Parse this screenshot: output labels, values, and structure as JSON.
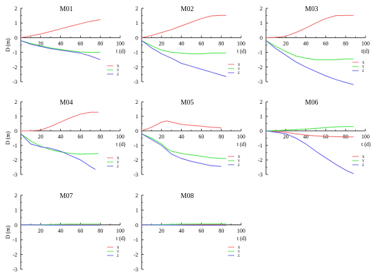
{
  "figure": {
    "xlabel": "t (d)",
    "ylabel": "D (m)",
    "xticks": [
      20,
      40,
      60,
      80,
      100
    ],
    "yticks": [
      2,
      1,
      0,
      -1,
      -2,
      -3
    ],
    "series_colors": {
      "X": "#f06262",
      "Y": "#3ee33e",
      "Z": "#5a5ae8"
    },
    "legend_labels": [
      "X",
      "Y",
      "Z"
    ]
  },
  "chart_data": [
    {
      "type": "line",
      "title": "M01",
      "xlabel": "t (d)",
      "ylabel": "D (m)",
      "xlim": [
        0,
        100
      ],
      "ylim": [
        -3,
        2
      ],
      "legend": "lower-right-below",
      "series": [
        {
          "name": "X",
          "x": [
            0,
            10,
            20,
            30,
            40,
            50,
            60,
            70,
            80
          ],
          "y": [
            0,
            0.12,
            0.25,
            0.42,
            0.6,
            0.78,
            0.95,
            1.12,
            1.22
          ]
        },
        {
          "name": "Y",
          "x": [
            0,
            10,
            20,
            30,
            40,
            50,
            60,
            70,
            80
          ],
          "y": [
            -0.2,
            -0.4,
            -0.55,
            -0.7,
            -0.8,
            -0.9,
            -0.97,
            -1.0,
            -1.0
          ]
        },
        {
          "name": "Z",
          "x": [
            0,
            10,
            20,
            30,
            40,
            50,
            60,
            70,
            80
          ],
          "y": [
            -0.2,
            -0.45,
            -0.6,
            -0.75,
            -0.85,
            -0.95,
            -1.05,
            -1.25,
            -1.5
          ]
        }
      ]
    },
    {
      "type": "line",
      "title": "M02",
      "xlabel": "t (d)",
      "ylabel": "",
      "xlim": [
        0,
        100
      ],
      "ylim": [
        -3,
        2
      ],
      "legend": "lower-right",
      "series": [
        {
          "name": "X",
          "x": [
            0,
            10,
            20,
            30,
            40,
            50,
            60,
            70,
            80,
            85
          ],
          "y": [
            0,
            0.15,
            0.35,
            0.55,
            0.8,
            1.05,
            1.3,
            1.48,
            1.52,
            1.52
          ]
        },
        {
          "name": "Y",
          "x": [
            0,
            10,
            20,
            30,
            40,
            50,
            60,
            70,
            80,
            85
          ],
          "y": [
            -0.2,
            -0.55,
            -0.85,
            -1.0,
            -1.05,
            -1.1,
            -1.1,
            -1.05,
            -1.05,
            -1.05
          ]
        },
        {
          "name": "Z",
          "x": [
            0,
            10,
            20,
            30,
            40,
            50,
            60,
            70,
            80,
            85
          ],
          "y": [
            -0.2,
            -0.7,
            -1.1,
            -1.4,
            -1.75,
            -1.95,
            -2.15,
            -2.35,
            -2.55,
            -2.65
          ]
        }
      ]
    },
    {
      "type": "line",
      "title": "M03",
      "xlabel": "t(d)",
      "ylabel": "",
      "xlim": [
        0,
        100
      ],
      "ylim": [
        -3,
        2
      ],
      "legend": "lower-right",
      "series": [
        {
          "name": "X",
          "x": [
            0,
            10,
            20,
            30,
            40,
            50,
            60,
            70,
            80,
            88
          ],
          "y": [
            0,
            0.02,
            0.1,
            0.35,
            0.65,
            1.0,
            1.3,
            1.5,
            1.52,
            1.52
          ]
        },
        {
          "name": "Y",
          "x": [
            0,
            10,
            20,
            30,
            40,
            50,
            60,
            70,
            80,
            88
          ],
          "y": [
            -0.2,
            -0.6,
            -0.95,
            -1.25,
            -1.4,
            -1.5,
            -1.5,
            -1.5,
            -1.45,
            -1.45
          ]
        },
        {
          "name": "Z",
          "x": [
            0,
            10,
            20,
            30,
            40,
            50,
            60,
            70,
            80,
            88
          ],
          "y": [
            -0.2,
            -0.75,
            -1.2,
            -1.65,
            -2.0,
            -2.3,
            -2.6,
            -2.85,
            -3.05,
            -3.2
          ]
        }
      ]
    },
    {
      "type": "line",
      "title": "M04",
      "xlabel": "t (d)",
      "ylabel": "D (m)",
      "xlim": [
        0,
        100
      ],
      "ylim": [
        -3,
        2
      ],
      "legend": "lower-right-below",
      "series": [
        {
          "name": "X",
          "x": [
            0,
            10,
            20,
            30,
            40,
            50,
            60,
            70,
            78
          ],
          "y": [
            0,
            0,
            0.05,
            0.3,
            0.6,
            0.9,
            1.15,
            1.28,
            1.28
          ]
        },
        {
          "name": "Y",
          "x": [
            0,
            10,
            20,
            30,
            40,
            50,
            60,
            70,
            78
          ],
          "y": [
            -0.2,
            -0.7,
            -1.05,
            -1.3,
            -1.45,
            -1.55,
            -1.6,
            -1.58,
            -1.55
          ]
        },
        {
          "name": "Z",
          "x": [
            0,
            10,
            20,
            30,
            40,
            50,
            60,
            70,
            75
          ],
          "y": [
            -0.2,
            -0.9,
            -1.1,
            -1.2,
            -1.4,
            -1.7,
            -2.0,
            -2.45,
            -2.65
          ]
        }
      ]
    },
    {
      "type": "line",
      "title": "M05",
      "xlabel": "t (d)",
      "ylabel": "",
      "xlim": [
        0,
        100
      ],
      "ylim": [
        -3,
        2
      ],
      "legend": "lower-right",
      "series": [
        {
          "name": "X",
          "x": [
            0,
            10,
            20,
            25,
            30,
            40,
            50,
            60,
            70,
            80
          ],
          "y": [
            0,
            0.25,
            0.6,
            0.68,
            0.6,
            0.45,
            0.38,
            0.32,
            0.25,
            0.2
          ]
        },
        {
          "name": "Y",
          "x": [
            0,
            10,
            20,
            25,
            30,
            40,
            50,
            60,
            70,
            80,
            85
          ],
          "y": [
            -0.2,
            -0.5,
            -0.9,
            -1.2,
            -1.4,
            -1.55,
            -1.65,
            -1.75,
            -1.85,
            -1.9,
            -1.9
          ]
        },
        {
          "name": "Z",
          "x": [
            0,
            10,
            20,
            25,
            30,
            40,
            50,
            60,
            70,
            80
          ],
          "y": [
            -0.2,
            -0.6,
            -1.0,
            -1.3,
            -1.6,
            -1.9,
            -2.1,
            -2.25,
            -2.4,
            -2.45
          ]
        }
      ]
    },
    {
      "type": "line",
      "title": "M06",
      "xlabel": "t (d)",
      "ylabel": "",
      "xlim": [
        0,
        100
      ],
      "ylim": [
        -3,
        2
      ],
      "legend": "lower-right",
      "series": [
        {
          "name": "X",
          "x": [
            0,
            10,
            20,
            30,
            40,
            50,
            60,
            70,
            80,
            88
          ],
          "y": [
            0,
            -0.05,
            -0.1,
            -0.2,
            -0.3,
            -0.35,
            -0.38,
            -0.4,
            -0.42,
            -0.42
          ]
        },
        {
          "name": "Y",
          "x": [
            0,
            10,
            20,
            30,
            40,
            50,
            60,
            70,
            80,
            88
          ],
          "y": [
            0,
            0.02,
            0.05,
            0.08,
            0.12,
            0.17,
            0.22,
            0.27,
            0.3,
            0.3
          ]
        },
        {
          "name": "Z",
          "x": [
            0,
            10,
            20,
            30,
            40,
            50,
            60,
            70,
            80,
            88
          ],
          "y": [
            0,
            -0.1,
            -0.2,
            -0.5,
            -0.9,
            -1.4,
            -1.85,
            -2.3,
            -2.7,
            -2.95
          ]
        }
      ]
    },
    {
      "type": "line",
      "title": "M07",
      "xlabel": "t (d)",
      "ylabel": "D (m)",
      "xlim": [
        0,
        100
      ],
      "ylim": [
        -3,
        2
      ],
      "legend": "lower-right",
      "series": [
        {
          "name": "X",
          "x": [
            0,
            20,
            40,
            60,
            80
          ],
          "y": [
            0,
            0,
            0.02,
            0.02,
            0.02
          ]
        },
        {
          "name": "Y",
          "x": [
            0,
            20,
            40,
            60,
            80
          ],
          "y": [
            0,
            0.01,
            0.04,
            0.05,
            0.05
          ]
        },
        {
          "name": "Z",
          "x": [
            0,
            20,
            40,
            60,
            80
          ],
          "y": [
            0,
            -0.01,
            -0.02,
            -0.02,
            -0.02
          ]
        }
      ]
    },
    {
      "type": "line",
      "title": "M08",
      "xlabel": "t (d)",
      "ylabel": "",
      "xlim": [
        0,
        100
      ],
      "ylim": [
        -3,
        2
      ],
      "legend": "lower-right",
      "series": [
        {
          "name": "X",
          "x": [
            0,
            20,
            40,
            60,
            85
          ],
          "y": [
            0,
            0.01,
            0.02,
            0.02,
            0.02
          ]
        },
        {
          "name": "Y",
          "x": [
            0,
            20,
            40,
            60,
            85
          ],
          "y": [
            0,
            0.02,
            0.05,
            0.06,
            0.06
          ]
        },
        {
          "name": "Z",
          "x": [
            0,
            20,
            40,
            60,
            85
          ],
          "y": [
            0,
            -0.01,
            -0.02,
            -0.03,
            -0.03
          ]
        }
      ]
    }
  ]
}
